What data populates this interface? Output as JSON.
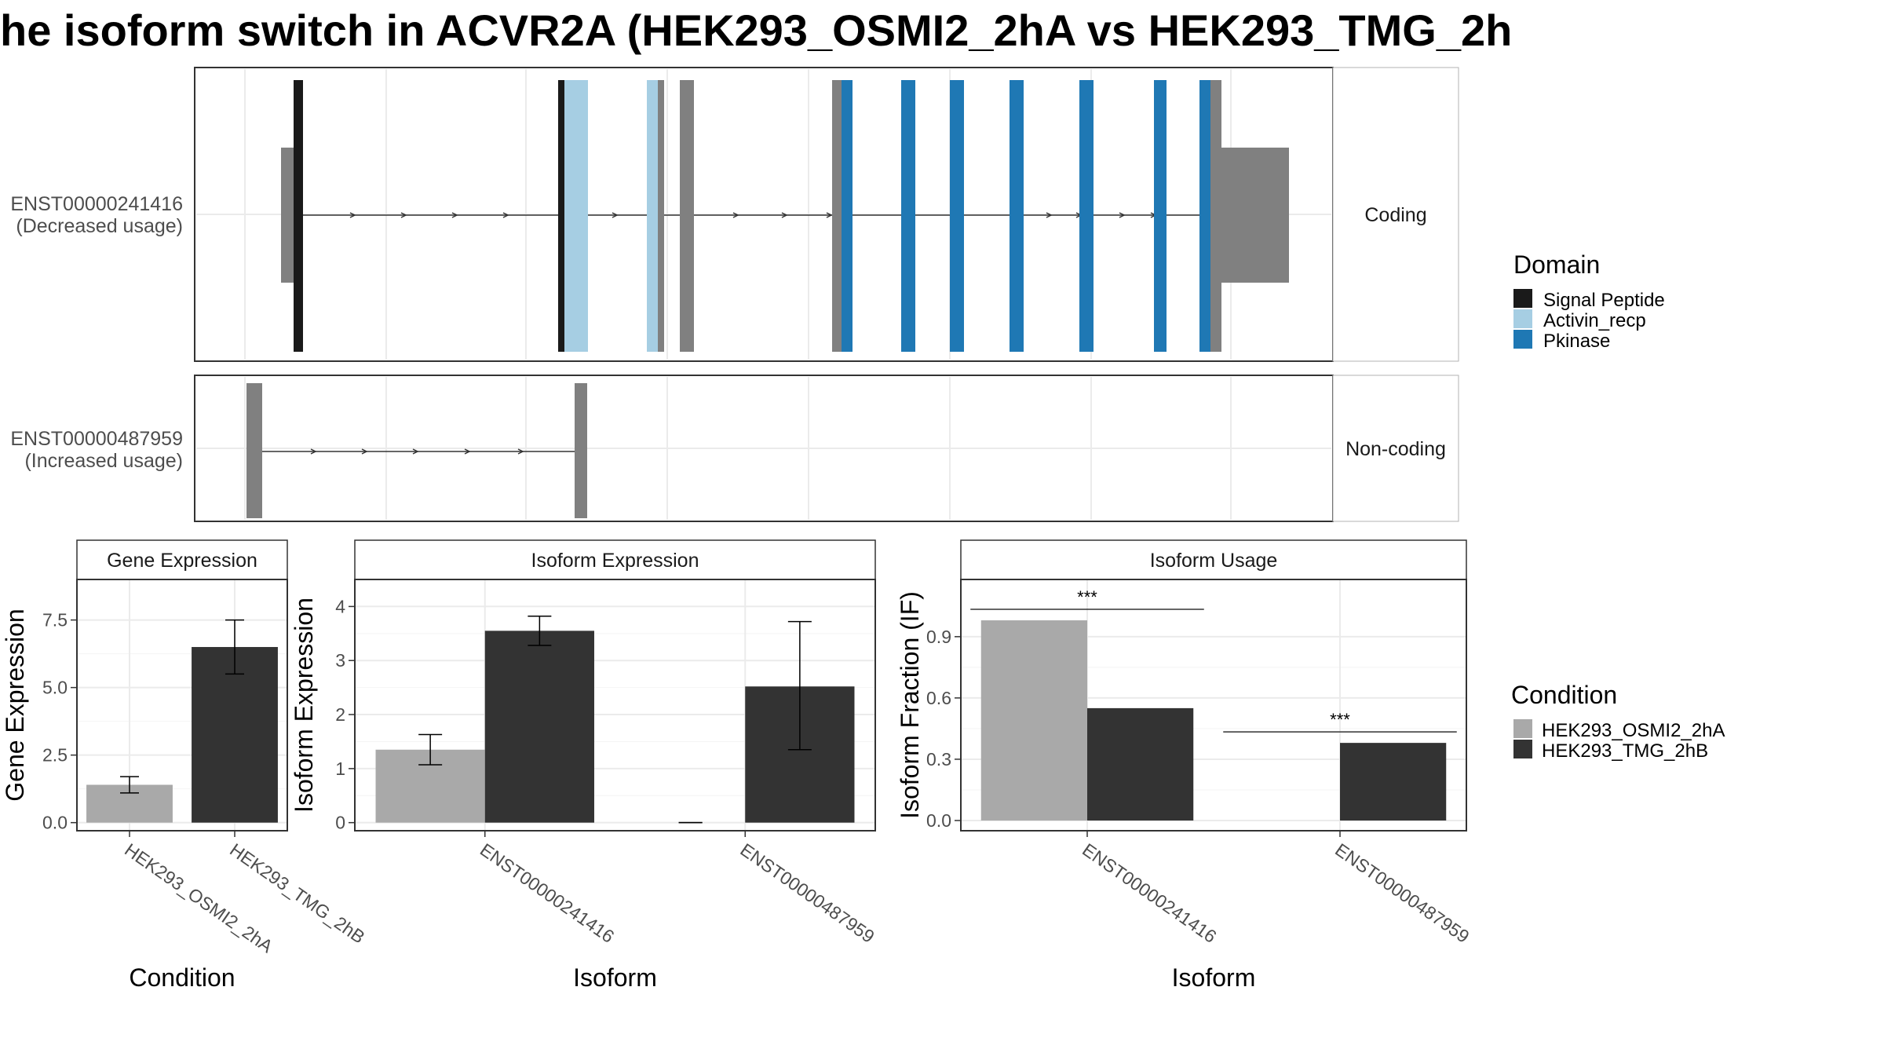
{
  "title": "he isoform switch in ACVR2A (HEK293_OSMI2_2hA vs HEK293_TMG_2h",
  "colors": {
    "signal_peptide": "#1a1a1a",
    "activin_recp": "#a6cee3",
    "pkinase": "#1f78b4",
    "exon": "#808080",
    "condition_a": "#a9a9a9",
    "condition_b": "#333333"
  },
  "isoforms": [
    {
      "id": "ENST00000241416",
      "usage": "(Decreased usage)",
      "facet": "Coding"
    },
    {
      "id": "ENST00000487959",
      "usage": "(Increased usage)",
      "facet": "Non-coding"
    }
  ],
  "domain_legend": {
    "title": "Domain",
    "items": [
      {
        "label": "Signal Peptide",
        "color": "#1a1a1a"
      },
      {
        "label": "Activin_recp",
        "color": "#a6cee3"
      },
      {
        "label": "Pkinase",
        "color": "#1f78b4"
      }
    ]
  },
  "condition_legend": {
    "title": "Condition",
    "items": [
      {
        "label": "HEK293_OSMI2_2hA",
        "color": "#a9a9a9"
      },
      {
        "label": "HEK293_TMG_2hB",
        "color": "#333333"
      }
    ]
  },
  "chart_data": [
    {
      "type": "bar",
      "title": "Gene Expression",
      "xlabel": "Condition",
      "ylabel": "Gene Expression",
      "categories": [
        "HEK293_OSMI2_2hA",
        "HEK293_TMG_2hB"
      ],
      "values": [
        1.4,
        6.5
      ],
      "error_low": [
        1.1,
        5.5
      ],
      "error_high": [
        1.7,
        7.5
      ],
      "yticks": [
        "0.0",
        "2.5",
        "5.0",
        "7.5"
      ],
      "ylim": [
        -0.3,
        9.0
      ]
    },
    {
      "type": "bar",
      "title": "Isoform Expression",
      "xlabel": "Isoform",
      "ylabel": "Isoform Expression",
      "categories": [
        "ENST00000241416",
        "ENST00000487959"
      ],
      "series": [
        {
          "name": "HEK293_OSMI2_2hA",
          "values": [
            1.35,
            0.0
          ],
          "error_low": [
            1.07,
            0.0
          ],
          "error_high": [
            1.63,
            0.0
          ]
        },
        {
          "name": "HEK293_TMG_2hB",
          "values": [
            3.55,
            2.52
          ],
          "error_low": [
            3.28,
            1.35
          ],
          "error_high": [
            3.82,
            3.72
          ]
        }
      ],
      "yticks": [
        "0",
        "1",
        "2",
        "3",
        "4"
      ],
      "ylim": [
        -0.15,
        4.5
      ]
    },
    {
      "type": "bar",
      "title": "Isoform Usage",
      "xlabel": "Isoform",
      "ylabel": "Isoform Fraction (IF)",
      "categories": [
        "ENST00000241416",
        "ENST00000487959"
      ],
      "series": [
        {
          "name": "HEK293_OSMI2_2hA",
          "values": [
            0.98,
            0.0
          ]
        },
        {
          "name": "HEK293_TMG_2hB",
          "values": [
            0.55,
            0.38
          ]
        }
      ],
      "significance": [
        "***",
        "***"
      ],
      "yticks": [
        "0.0",
        "0.3",
        "0.6",
        "0.9"
      ],
      "ylim": [
        -0.05,
        1.18
      ]
    }
  ]
}
